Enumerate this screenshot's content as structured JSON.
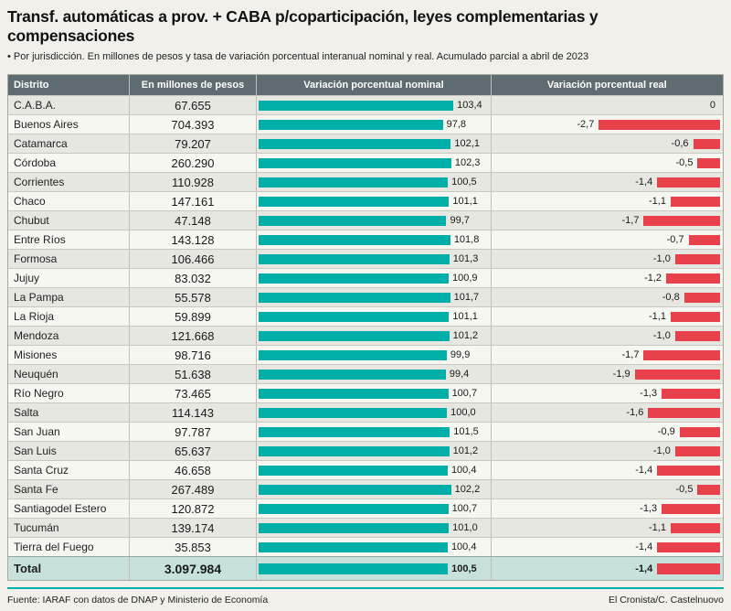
{
  "header": {
    "title": "Transf. automáticas a prov. + CABA p/coparticipación, leyes complementarias y compensaciones",
    "subtitle": "• Por jurisdicción. En millones de pesos y tasa de variación porcentual interanual nominal y real. Acumulado parcial a abril de 2023"
  },
  "chart_data": {
    "type": "table",
    "title": "Transf. automáticas a prov. + CABA p/coparticipación, leyes complementarias y compensaciones",
    "columns": [
      "Distrito",
      "En millones de pesos",
      "Variación porcentual nominal",
      "Variación porcentual real"
    ],
    "nominal_axis_max": 103.4,
    "real_axis_max": 2.7,
    "colors": {
      "nominal_bar": "#00b0a8",
      "real_bar": "#e8414b",
      "header_bg": "#5e6c72",
      "total_row_bg": "#c7e2dd"
    },
    "rows": [
      {
        "district": "C.A.B.A.",
        "amount": "67.655",
        "nominal": 103.4,
        "nominal_label": "103,4",
        "real": 0,
        "real_label": "0"
      },
      {
        "district": "Buenos Aires",
        "amount": "704.393",
        "nominal": 97.8,
        "nominal_label": "97,8",
        "real": -2.7,
        "real_label": "-2,7"
      },
      {
        "district": "Catamarca",
        "amount": "79.207",
        "nominal": 102.1,
        "nominal_label": "102,1",
        "real": -0.6,
        "real_label": "-0,6"
      },
      {
        "district": "Córdoba",
        "amount": "260.290",
        "nominal": 102.3,
        "nominal_label": "102,3",
        "real": -0.5,
        "real_label": "-0,5"
      },
      {
        "district": "Corrientes",
        "amount": "110.928",
        "nominal": 100.5,
        "nominal_label": "100,5",
        "real": -1.4,
        "real_label": "-1,4"
      },
      {
        "district": "Chaco",
        "amount": "147.161",
        "nominal": 101.1,
        "nominal_label": "101,1",
        "real": -1.1,
        "real_label": "-1,1"
      },
      {
        "district": "Chubut",
        "amount": "47.148",
        "nominal": 99.7,
        "nominal_label": "99,7",
        "real": -1.7,
        "real_label": "-1,7"
      },
      {
        "district": "Entre Ríos",
        "amount": "143.128",
        "nominal": 101.8,
        "nominal_label": "101,8",
        "real": -0.7,
        "real_label": "-0,7"
      },
      {
        "district": "Formosa",
        "amount": "106.466",
        "nominal": 101.3,
        "nominal_label": "101,3",
        "real": -1.0,
        "real_label": "-1,0"
      },
      {
        "district": "Jujuy",
        "amount": "83.032",
        "nominal": 100.9,
        "nominal_label": "100,9",
        "real": -1.2,
        "real_label": "-1,2"
      },
      {
        "district": "La Pampa",
        "amount": "55.578",
        "nominal": 101.7,
        "nominal_label": "101,7",
        "real": -0.8,
        "real_label": "-0,8"
      },
      {
        "district": "La Rioja",
        "amount": "59.899",
        "nominal": 101.1,
        "nominal_label": "101,1",
        "real": -1.1,
        "real_label": "-1,1"
      },
      {
        "district": "Mendoza",
        "amount": "121.668",
        "nominal": 101.2,
        "nominal_label": "101,2",
        "real": -1.0,
        "real_label": "-1,0"
      },
      {
        "district": "Misiones",
        "amount": "98.716",
        "nominal": 99.9,
        "nominal_label": "99,9",
        "real": -1.7,
        "real_label": "-1,7"
      },
      {
        "district": "Neuquén",
        "amount": "51.638",
        "nominal": 99.4,
        "nominal_label": "99,4",
        "real": -1.9,
        "real_label": "-1,9"
      },
      {
        "district": "Río Negro",
        "amount": "73.465",
        "nominal": 100.7,
        "nominal_label": "100,7",
        "real": -1.3,
        "real_label": "-1,3"
      },
      {
        "district": "Salta",
        "amount": "114.143",
        "nominal": 100.0,
        "nominal_label": "100,0",
        "real": -1.6,
        "real_label": "-1,6"
      },
      {
        "district": "San Juan",
        "amount": "97.787",
        "nominal": 101.5,
        "nominal_label": "101,5",
        "real": -0.9,
        "real_label": "-0,9"
      },
      {
        "district": "San Luis",
        "amount": "65.637",
        "nominal": 101.2,
        "nominal_label": "101,2",
        "real": -1.0,
        "real_label": "-1,0"
      },
      {
        "district": "Santa Cruz",
        "amount": "46.658",
        "nominal": 100.4,
        "nominal_label": "100,4",
        "real": -1.4,
        "real_label": "-1,4"
      },
      {
        "district": "Santa Fe",
        "amount": "267.489",
        "nominal": 102.2,
        "nominal_label": "102,2",
        "real": -0.5,
        "real_label": "-0,5"
      },
      {
        "district": "Santiagodel Estero",
        "amount": "120.872",
        "nominal": 100.7,
        "nominal_label": "100,7",
        "real": -1.3,
        "real_label": "-1,3"
      },
      {
        "district": "Tucumán",
        "amount": "139.174",
        "nominal": 101.0,
        "nominal_label": "101,0",
        "real": -1.1,
        "real_label": "-1,1"
      },
      {
        "district": "Tierra del Fuego",
        "amount": "35.853",
        "nominal": 100.4,
        "nominal_label": "100,4",
        "real": -1.4,
        "real_label": "-1,4"
      }
    ],
    "total": {
      "district": "Total",
      "amount": "3.097.984",
      "nominal": 100.5,
      "nominal_label": "100,5",
      "real": -1.4,
      "real_label": "-1,4"
    }
  },
  "footer": {
    "source": "Fuente: IARAF con datos de DNAP y Ministerio de Economía",
    "credit": "El Cronista/C. Castelnuovo"
  }
}
